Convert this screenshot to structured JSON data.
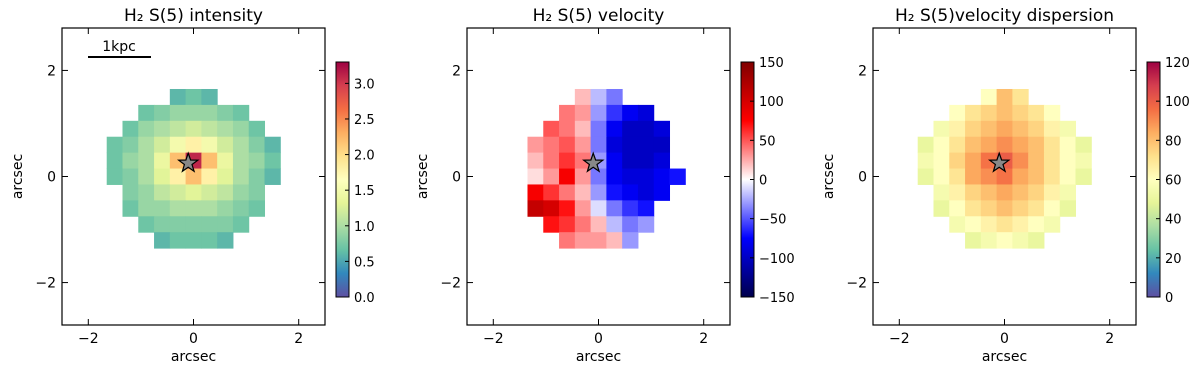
{
  "chart_data": [
    {
      "type": "heatmap",
      "title": "H₂ S(5) intensity",
      "xlabel": "arcsec",
      "ylabel": "arcsec",
      "xlim": [
        -2.5,
        2.5
      ],
      "ylim": [
        -2.8,
        2.8
      ],
      "xticks": [
        {
          "value": -2,
          "label": "−2"
        },
        0,
        2
      ],
      "yticks": [
        {
          "value": -2,
          "label": "−2"
        },
        0,
        2
      ],
      "x": [
        -1.5,
        -1.2,
        -0.9,
        -0.6,
        -0.3,
        0,
        0.3,
        0.6,
        0.9,
        1.2,
        1.5
      ],
      "y": [
        1.5,
        1.2,
        0.9,
        0.6,
        0.3,
        0,
        -0.3,
        -0.6,
        -0.9,
        -1.2,
        -1.5
      ],
      "values": [
        [
          null,
          null,
          null,
          null,
          0.6,
          0.7,
          0.6,
          null,
          null,
          null,
          null
        ],
        [
          null,
          null,
          0.7,
          0.8,
          0.9,
          0.9,
          0.9,
          0.8,
          0.7,
          null,
          null
        ],
        [
          null,
          0.7,
          0.9,
          1.0,
          1.1,
          1.2,
          1.1,
          1.0,
          0.9,
          0.7,
          null
        ],
        [
          0.7,
          0.8,
          1.0,
          1.2,
          1.5,
          1.8,
          1.5,
          1.2,
          1.0,
          0.8,
          0.6
        ],
        [
          0.7,
          0.9,
          1.0,
          1.4,
          2.2,
          3.1,
          2.2,
          1.4,
          1.0,
          0.9,
          0.7
        ],
        [
          0.7,
          0.8,
          1.0,
          1.3,
          1.8,
          2.2,
          1.8,
          1.3,
          1.0,
          0.8,
          0.6
        ],
        [
          null,
          0.8,
          0.9,
          1.1,
          1.2,
          1.3,
          1.2,
          1.1,
          0.9,
          0.8,
          null
        ],
        [
          null,
          0.7,
          0.9,
          0.9,
          1.0,
          1.0,
          1.0,
          0.9,
          0.8,
          0.7,
          null
        ],
        [
          null,
          null,
          0.7,
          0.8,
          0.8,
          0.8,
          0.8,
          0.8,
          0.7,
          null,
          null
        ],
        [
          null,
          null,
          null,
          0.6,
          0.7,
          0.7,
          0.7,
          0.6,
          null,
          null,
          null
        ],
        [
          null,
          null,
          null,
          null,
          null,
          null,
          null,
          null,
          null,
          null,
          null
        ]
      ],
      "clim": [
        0,
        3.3
      ],
      "cticks": [
        {
          "value": 0,
          "label": "0.0"
        },
        {
          "value": 0.5,
          "label": "0.5"
        },
        {
          "value": 1,
          "label": "1.0"
        },
        {
          "value": 1.5,
          "label": "1.5"
        },
        {
          "value": 2,
          "label": "2.0"
        },
        {
          "value": 2.5,
          "label": "2.5"
        },
        {
          "value": 3,
          "label": "3.0"
        }
      ],
      "colormap": [
        "#5e4fa2",
        "#3288bd",
        "#66c2a5",
        "#abdda4",
        "#e6f598",
        "#ffffbf",
        "#fee08b",
        "#fdae61",
        "#f46d43",
        "#d53e4f",
        "#9e0142"
      ],
      "marker": [
        -0.1,
        0.25
      ],
      "scale_bar_label": "1kpc"
    },
    {
      "type": "heatmap",
      "title": "H₂ S(5) velocity",
      "xlabel": "arcsec",
      "ylabel": "arcsec",
      "xlim": [
        -2.5,
        2.5
      ],
      "ylim": [
        -2.8,
        2.8
      ],
      "xticks": [
        {
          "value": -2,
          "label": "−2"
        },
        0,
        2
      ],
      "yticks": [
        {
          "value": -2,
          "label": "−2"
        },
        0,
        2
      ],
      "x": [
        -1.5,
        -1.2,
        -0.9,
        -0.6,
        -0.3,
        0,
        0.3,
        0.6,
        0.9,
        1.2,
        1.5
      ],
      "y": [
        1.5,
        1.2,
        0.9,
        0.6,
        0.3,
        0,
        -0.3,
        -0.6,
        -0.9,
        -1.2,
        -1.5
      ],
      "values": [
        [
          null,
          null,
          null,
          null,
          20,
          -20,
          -40,
          null,
          null,
          null,
          null
        ],
        [
          null,
          null,
          null,
          40,
          30,
          -30,
          -60,
          -80,
          -90,
          null,
          null
        ],
        [
          null,
          null,
          50,
          40,
          20,
          -40,
          -80,
          -100,
          -100,
          -90,
          null
        ],
        [
          null,
          30,
          40,
          50,
          30,
          -40,
          -90,
          -100,
          -100,
          -100,
          null
        ],
        [
          null,
          20,
          40,
          60,
          40,
          -30,
          -80,
          -100,
          -100,
          -90,
          null
        ],
        [
          null,
          10,
          30,
          80,
          30,
          -40,
          -80,
          -90,
          -90,
          -80,
          -70
        ],
        [
          null,
          80,
          60,
          40,
          20,
          -30,
          -70,
          -80,
          -90,
          -80,
          null
        ],
        [
          null,
          110,
          100,
          70,
          30,
          -10,
          -40,
          -60,
          -70,
          null,
          null
        ],
        [
          null,
          null,
          70,
          60,
          40,
          20,
          -20,
          -40,
          -30,
          null,
          null
        ],
        [
          null,
          null,
          null,
          40,
          30,
          30,
          20,
          -30,
          null,
          null,
          null
        ],
        [
          null,
          null,
          null,
          null,
          null,
          null,
          null,
          null,
          null,
          null,
          null
        ]
      ],
      "clim": [
        -150,
        150
      ],
      "cticks": [
        {
          "value": -150,
          "label": "−150"
        },
        {
          "value": -100,
          "label": "−100"
        },
        {
          "value": -50,
          "label": "−50"
        },
        0,
        50,
        100,
        150
      ],
      "colormap": [
        "#00004c",
        "#0000ff",
        "#ffffff",
        "#ff0000",
        "#800000"
      ],
      "marker": [
        -0.1,
        0.25
      ]
    },
    {
      "type": "heatmap",
      "title": "H₂ S(5)velocity dispersion",
      "xlabel": "arcsec",
      "ylabel": "arcsec",
      "xlim": [
        -2.5,
        2.5
      ],
      "ylim": [
        -2.8,
        2.8
      ],
      "xticks": [
        {
          "value": -2,
          "label": "−2"
        },
        0,
        2
      ],
      "yticks": [
        {
          "value": -2,
          "label": "−2"
        },
        0,
        2
      ],
      "x": [
        -1.5,
        -1.2,
        -0.9,
        -0.6,
        -0.3,
        0,
        0.3,
        0.6,
        0.9,
        1.2,
        1.5
      ],
      "y": [
        1.5,
        1.2,
        0.9,
        0.6,
        0.3,
        0,
        -0.3,
        -0.6,
        -0.9,
        -1.2,
        -1.5
      ],
      "values": [
        [
          null,
          null,
          null,
          null,
          60,
          80,
          70,
          null,
          null,
          null,
          null
        ],
        [
          null,
          null,
          60,
          70,
          75,
          80,
          75,
          70,
          60,
          null,
          null
        ],
        [
          null,
          55,
          65,
          75,
          80,
          85,
          80,
          75,
          65,
          55,
          null
        ],
        [
          50,
          60,
          70,
          80,
          85,
          90,
          85,
          80,
          70,
          60,
          50
        ],
        [
          55,
          60,
          75,
          85,
          95,
          100,
          90,
          80,
          70,
          60,
          55
        ],
        [
          50,
          60,
          70,
          85,
          90,
          95,
          85,
          80,
          70,
          60,
          50
        ],
        [
          null,
          55,
          65,
          75,
          80,
          85,
          80,
          75,
          65,
          55,
          null
        ],
        [
          null,
          50,
          60,
          70,
          75,
          80,
          75,
          70,
          60,
          50,
          null
        ],
        [
          null,
          null,
          55,
          60,
          65,
          70,
          65,
          60,
          55,
          null,
          null
        ],
        [
          null,
          null,
          null,
          50,
          55,
          60,
          55,
          50,
          null,
          null,
          null
        ],
        [
          null,
          null,
          null,
          null,
          null,
          null,
          null,
          null,
          null,
          null,
          null
        ]
      ],
      "clim": [
        0,
        120
      ],
      "cticks": [
        0,
        20,
        40,
        60,
        80,
        100,
        120
      ],
      "colormap": [
        "#5e4fa2",
        "#3288bd",
        "#66c2a5",
        "#abdda4",
        "#e6f598",
        "#ffffbf",
        "#fee08b",
        "#fdae61",
        "#f46d43",
        "#d53e4f",
        "#9e0142"
      ],
      "marker": [
        -0.1,
        0.25
      ]
    }
  ]
}
